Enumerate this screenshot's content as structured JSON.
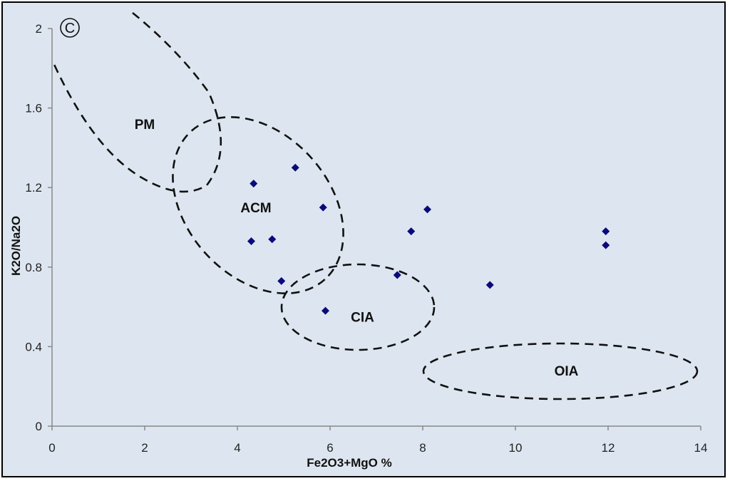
{
  "chart_data": {
    "type": "scatter",
    "panel_label": "C",
    "xlabel": "Fe2O3+MgO %",
    "ylabel": "K2O/Na2O",
    "xlim": [
      0,
      14
    ],
    "ylim": [
      0,
      2
    ],
    "x_ticks": [
      "0",
      "2",
      "4",
      "6",
      "8",
      "10",
      "12",
      "14"
    ],
    "y_ticks": [
      "0",
      "0.4",
      "0.8",
      "1.2",
      "1.6",
      "2"
    ],
    "grid": false,
    "legend": "none",
    "marker_color": "#0a0a7a",
    "points": [
      {
        "x": 4.35,
        "y": 1.22
      },
      {
        "x": 5.25,
        "y": 1.3
      },
      {
        "x": 5.85,
        "y": 1.1
      },
      {
        "x": 4.3,
        "y": 0.93
      },
      {
        "x": 4.75,
        "y": 0.94
      },
      {
        "x": 4.95,
        "y": 0.73
      },
      {
        "x": 5.9,
        "y": 0.58
      },
      {
        "x": 7.45,
        "y": 0.76
      },
      {
        "x": 7.75,
        "y": 0.98
      },
      {
        "x": 8.1,
        "y": 1.09
      },
      {
        "x": 9.45,
        "y": 0.71
      },
      {
        "x": 11.95,
        "y": 0.98
      },
      {
        "x": 11.95,
        "y": 0.91
      }
    ],
    "zones": [
      {
        "name": "PM",
        "label_x": 2,
        "label_y": 1.52
      },
      {
        "name": "ACM",
        "label_x": 4.4,
        "label_y": 1.1
      },
      {
        "name": "CIA",
        "label_x": 6.7,
        "label_y": 0.55
      },
      {
        "name": "OIA",
        "label_x": 11.1,
        "label_y": 0.28
      }
    ]
  }
}
